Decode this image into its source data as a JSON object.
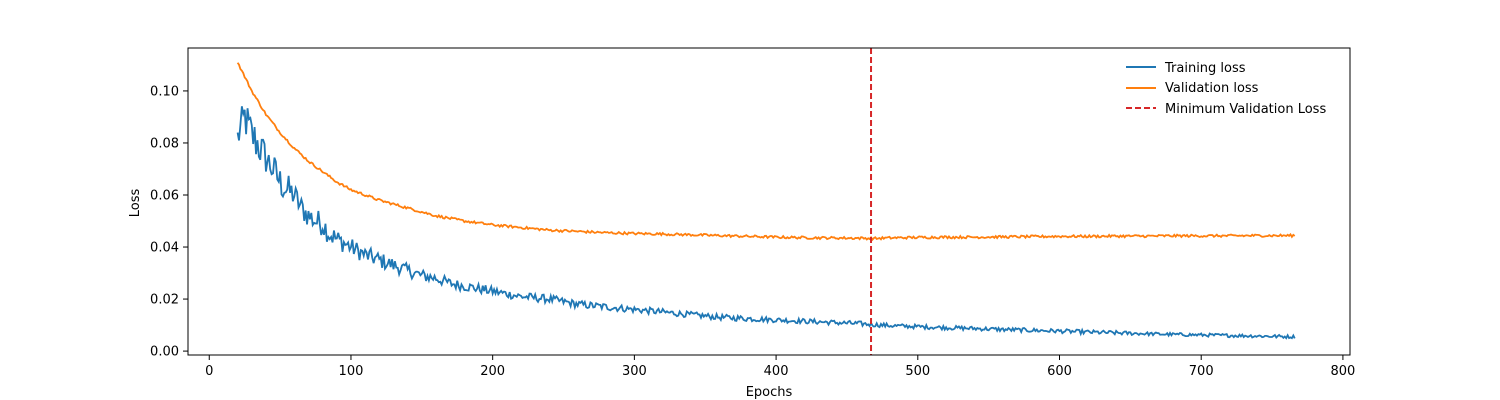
{
  "chart_data": {
    "type": "line",
    "title": "",
    "xlabel": "Epochs",
    "ylabel": "Loss",
    "xlim": [
      -15,
      805
    ],
    "ylim": [
      -0.0015,
      0.1165
    ],
    "xticks": [
      0,
      100,
      200,
      300,
      400,
      500,
      600,
      700,
      800
    ],
    "yticks": [
      0.0,
      0.02,
      0.04,
      0.06,
      0.08,
      0.1
    ],
    "ytick_labels": [
      "0.00",
      "0.02",
      "0.04",
      "0.06",
      "0.08",
      "0.10"
    ],
    "xtick_labels": [
      "0",
      "100",
      "200",
      "300",
      "400",
      "500",
      "600",
      "700",
      "800"
    ],
    "grid": false,
    "legend_position": "top-right",
    "colors": {
      "training": "#1f77b4",
      "validation": "#ff7f0e",
      "min_line": "#d62728"
    },
    "series": [
      {
        "name": "Training loss",
        "style": "solid",
        "x": [
          20,
          25,
          30,
          35,
          40,
          45,
          50,
          55,
          60,
          65,
          70,
          75,
          80,
          85,
          90,
          100,
          110,
          120,
          130,
          140,
          150,
          160,
          170,
          180,
          190,
          200,
          220,
          240,
          260,
          280,
          300,
          320,
          340,
          360,
          380,
          400,
          420,
          440,
          460,
          480,
          500,
          520,
          540,
          560,
          580,
          600,
          620,
          640,
          660,
          680,
          700,
          720,
          740,
          766
        ],
        "y": [
          0.082,
          0.09,
          0.083,
          0.079,
          0.074,
          0.07,
          0.065,
          0.062,
          0.06,
          0.055,
          0.052,
          0.05,
          0.049,
          0.045,
          0.043,
          0.04,
          0.037,
          0.035,
          0.033,
          0.031,
          0.029,
          0.028,
          0.026,
          0.025,
          0.024,
          0.023,
          0.021,
          0.02,
          0.018,
          0.017,
          0.016,
          0.015,
          0.014,
          0.013,
          0.0125,
          0.012,
          0.0115,
          0.011,
          0.0105,
          0.0098,
          0.0094,
          0.009,
          0.0087,
          0.0083,
          0.008,
          0.0077,
          0.0073,
          0.007,
          0.0067,
          0.0064,
          0.0062,
          0.006,
          0.0058,
          0.0055
        ],
        "noise": [
          0.004,
          0.005,
          0.005,
          0.005,
          0.004,
          0.004,
          0.004,
          0.004,
          0.003,
          0.003,
          0.003,
          0.003,
          0.003,
          0.0028,
          0.0025,
          0.0022,
          0.002,
          0.002,
          0.0018,
          0.0016,
          0.0015,
          0.0014,
          0.0013,
          0.0012,
          0.0012,
          0.0011,
          0.001,
          0.001,
          0.0009,
          0.0009,
          0.0008,
          0.0008,
          0.0007,
          0.0007,
          0.0007,
          0.0006,
          0.0006,
          0.0006,
          0.0006,
          0.0005,
          0.0005,
          0.0005,
          0.0005,
          0.0005,
          0.0005,
          0.0005,
          0.0005,
          0.0005,
          0.0004,
          0.0004,
          0.0004,
          0.0004,
          0.0004,
          0.0004
        ]
      },
      {
        "name": "Validation loss",
        "style": "solid",
        "x": [
          20,
          30,
          40,
          50,
          60,
          70,
          80,
          90,
          100,
          120,
          140,
          160,
          180,
          200,
          220,
          240,
          260,
          280,
          300,
          320,
          340,
          360,
          380,
          400,
          420,
          440,
          460,
          470,
          480,
          500,
          520,
          540,
          560,
          580,
          600,
          620,
          640,
          660,
          680,
          700,
          720,
          740,
          766
        ],
        "y": [
          0.111,
          0.1,
          0.091,
          0.084,
          0.078,
          0.073,
          0.069,
          0.065,
          0.062,
          0.058,
          0.055,
          0.052,
          0.05,
          0.0485,
          0.0475,
          0.0465,
          0.046,
          0.0455,
          0.0452,
          0.045,
          0.0447,
          0.0444,
          0.0441,
          0.0438,
          0.0436,
          0.0435,
          0.0434,
          0.0433,
          0.0435,
          0.0437,
          0.0438,
          0.0438,
          0.0439,
          0.044,
          0.0441,
          0.0441,
          0.0442,
          0.0442,
          0.0443,
          0.0443,
          0.0443,
          0.0444,
          0.0444
        ],
        "noise": [
          0.0003,
          0.0003,
          0.0003,
          0.0003,
          0.0003,
          0.0003,
          0.0003,
          0.0003,
          0.0003,
          0.0003,
          0.0003,
          0.0003,
          0.0003,
          0.0003,
          0.0003,
          0.0003,
          0.0003,
          0.0003,
          0.0003,
          0.0003,
          0.0003,
          0.0003,
          0.0003,
          0.0003,
          0.0003,
          0.0003,
          0.0003,
          0.0003,
          0.0003,
          0.0003,
          0.0003,
          0.0003,
          0.0003,
          0.0003,
          0.0003,
          0.0003,
          0.0003,
          0.0003,
          0.0003,
          0.0003,
          0.0003,
          0.0003,
          0.0003
        ]
      }
    ],
    "vline": {
      "name": "Minimum Validation Loss",
      "x": 467,
      "style": "dashed"
    }
  }
}
